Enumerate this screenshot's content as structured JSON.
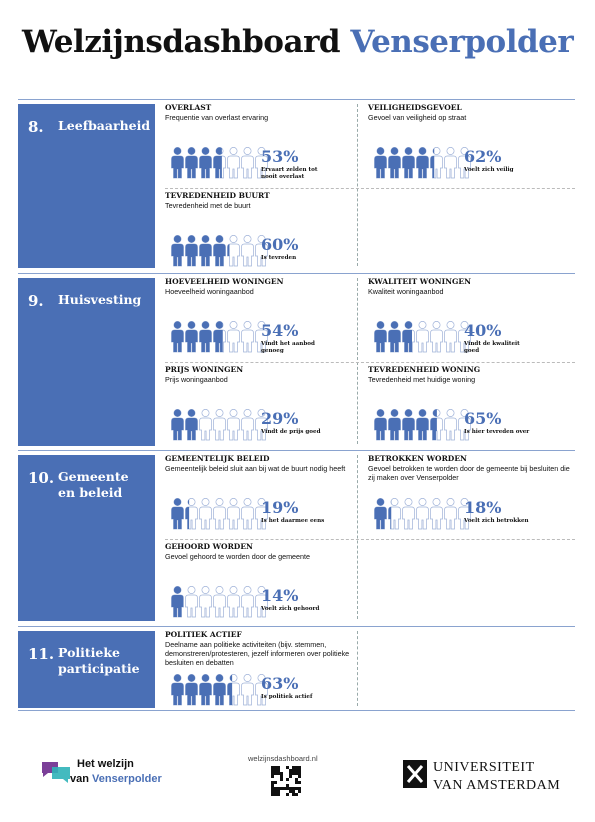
{
  "header": {
    "title": "Welzijnsdashboard",
    "title_highlight": "Venserpolder"
  },
  "sections": [
    {
      "number": "8.",
      "title": "Leefbaarheid",
      "items": [
        {
          "title": "OVERLAST",
          "subtitle": "Frequentie van overlast ervaring",
          "percent": 53,
          "percent_label": "53%",
          "caption": "Ervaart zelden tot nooit overlast"
        },
        {
          "title": "VEILIGHEIDSGEVOEL",
          "subtitle": "Gevoel van veiligheid op straat",
          "percent": 62,
          "percent_label": "62%",
          "caption": "Voelt zich veilig"
        },
        {
          "title": "TEVREDENHEID BUURT",
          "subtitle": "Tevredenheid met de buurt",
          "percent": 60,
          "percent_label": "60%",
          "caption": "Is tevreden"
        }
      ]
    },
    {
      "number": "9.",
      "title": "Huisvesting",
      "items": [
        {
          "title": "HOEVEELHEID WONINGEN",
          "subtitle": "Hoeveelheid woningaanbod",
          "percent": 54,
          "percent_label": "54%",
          "caption": "Vindt het aanbod genoeg"
        },
        {
          "title": "KWALITEIT WONINGEN",
          "subtitle": "Kwaliteit woningaanbod",
          "percent": 40,
          "percent_label": "40%",
          "caption": "Vindt de kwaliteit goed"
        },
        {
          "title": "PRIJS WONINGEN",
          "subtitle": "Prijs woningaanbod",
          "percent": 29,
          "percent_label": "29%",
          "caption": "Vindt de prijs goed"
        },
        {
          "title": "TEVREDENHEID WONING",
          "subtitle": "Tevredenheid met huidige woning",
          "percent": 65,
          "percent_label": "65%",
          "caption": "Is hier tevreden over"
        }
      ]
    },
    {
      "number": "10.",
      "title": "Gemeente en beleid",
      "items": [
        {
          "title": "GEMEENTELIJK BELEID",
          "subtitle": "Gemeentelijk beleid sluit aan bij wat de buurt nodig heeft",
          "percent": 19,
          "percent_label": "19%",
          "caption": "Is het daarmee eens"
        },
        {
          "title": "BETROKKEN WORDEN",
          "subtitle": "Gevoel betrokken te worden door de gemeente bij besluiten die zij maken over Venserpolder",
          "percent": 18,
          "percent_label": "18%",
          "caption": "Voelt zich betrokken"
        },
        {
          "title": "GEHOORD WORDEN",
          "subtitle": "Gevoel gehoord te worden door de gemeente",
          "percent": 14,
          "percent_label": "14%",
          "caption": "Voelt zich gehoord"
        }
      ]
    },
    {
      "number": "11.",
      "title": "Politieke participatie",
      "items": [
        {
          "title": "POLITIEK ACTIEF",
          "subtitle": "Deelname aan politieke activiteiten (bijv. stemmen, demonstreren/protesteren, jezelf informeren over politieke besluiten en debatten",
          "percent": 63,
          "percent_label": "63%",
          "caption": "Is politiek actief"
        }
      ]
    }
  ],
  "footer": {
    "logo_line1": "Het welzijn",
    "logo_line2": "van",
    "logo_line2_highlight": "Venserpolder",
    "url": "welzijnsdashboard.nl",
    "university_line1": "UNIVERSITEIT",
    "university_line2": "VAN AMSTERDAM"
  }
}
